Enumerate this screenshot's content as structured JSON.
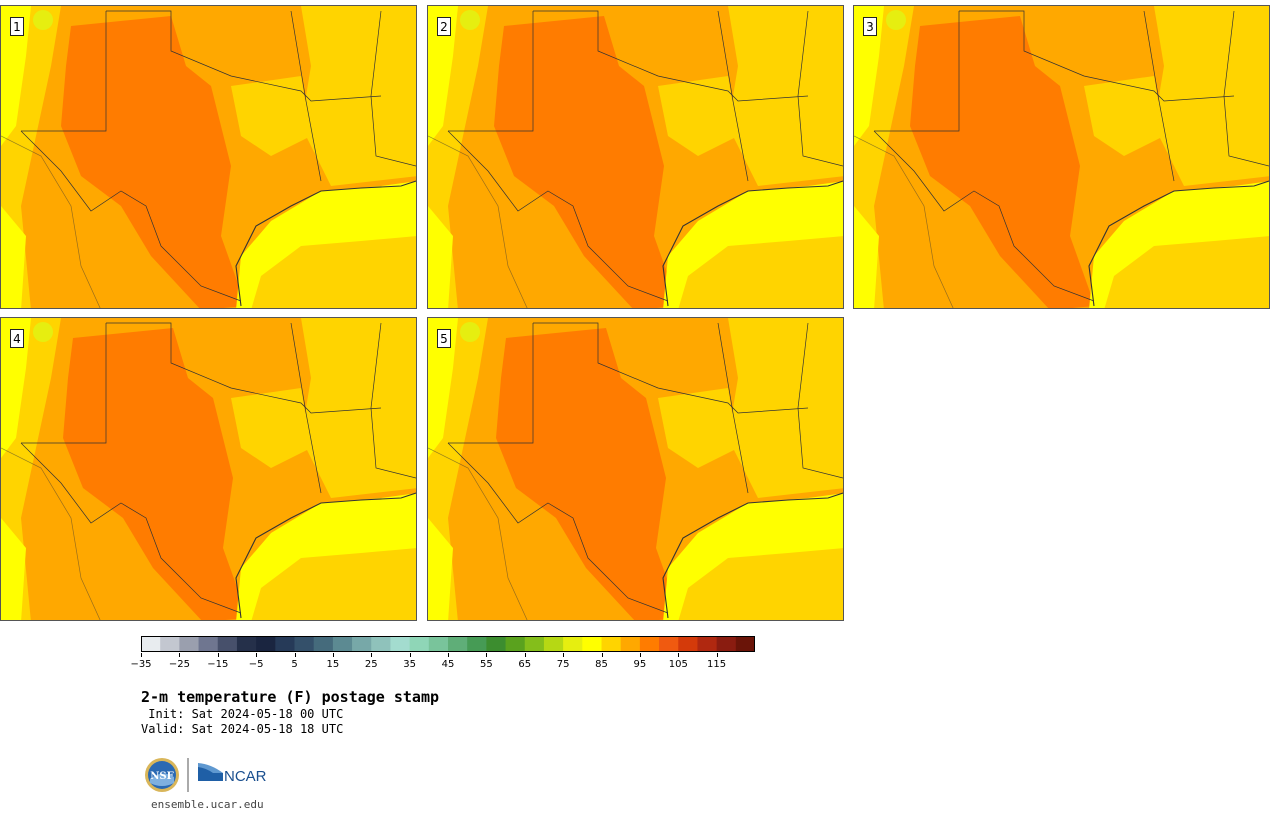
{
  "panels": [
    {
      "label": "1"
    },
    {
      "label": "2"
    },
    {
      "label": "3"
    },
    {
      "label": "4"
    },
    {
      "label": "5"
    }
  ],
  "colorbar": {
    "colors": [
      "#e8ecef",
      "#c3c7d0",
      "#9a9fae",
      "#6f7690",
      "#47506b",
      "#25304a",
      "#1a2540",
      "#263a58",
      "#34506a",
      "#456b7c",
      "#5c8a92",
      "#77a8a8",
      "#8fc2bb",
      "#a3dccf",
      "#8fd6b7",
      "#79c49b",
      "#5fae78",
      "#469b55",
      "#3c8d2f",
      "#5aa21e",
      "#84be1b",
      "#b6d814",
      "#e6ee10",
      "#ffff00",
      "#ffd400",
      "#ffa800",
      "#ff7c00",
      "#f05a10",
      "#d43a0a",
      "#b02810",
      "#8a1c10",
      "#6a1408"
    ],
    "tick_labels": [
      "−35",
      "−25",
      "−15",
      "−5",
      "5",
      "15",
      "25",
      "35",
      "45",
      "55",
      "65",
      "75",
      "85",
      "95",
      "105",
      "115"
    ]
  },
  "title": "2-m temperature (F) postage stamp",
  "init_line": " Init: Sat 2024-05-18 00 UTC",
  "valid_line": "Valid: Sat 2024-05-18 18 UTC",
  "logo_left_text": "NSF",
  "logo_right_text": "NCAR",
  "site": "ensemble.ucar.edu",
  "map_colors": {
    "land_hot": "#ff7c00",
    "land_warm": "#ffa800",
    "land_mild": "#ffd400",
    "land_cool": "#ffff00",
    "land_green": "#e6ee10",
    "gulf": "#ffff00",
    "gulf_deep": "#ffd400",
    "border": "#333333"
  }
}
